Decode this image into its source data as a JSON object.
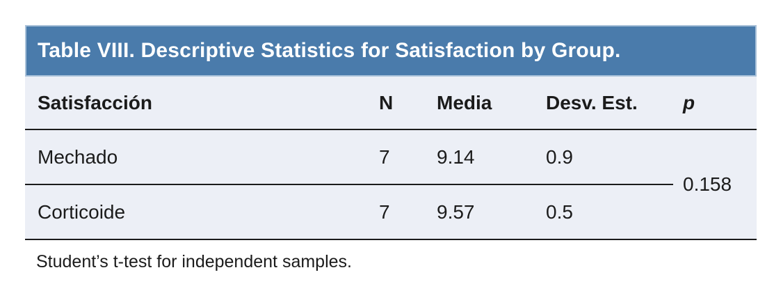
{
  "table": {
    "title": "Table VIII. Descriptive Statistics for Satisfaction by Group.",
    "columns": {
      "group": "Satisfacción",
      "n": "N",
      "mean": "Media",
      "sd": "Desv. Est.",
      "p": "p"
    },
    "rows": [
      {
        "cells": [
          "Mechado",
          "7",
          "9.14",
          "0.9"
        ]
      },
      {
        "cells": [
          "Corticoide",
          "7",
          "9.57",
          "0.5"
        ]
      }
    ],
    "p_value": "0.158",
    "footnote": "Student’s t-test for independent samples."
  },
  "colors": {
    "title_bar_bg": "#4A7BAB",
    "title_bar_border": "#A9C1D9",
    "title_text": "#FFFFFF",
    "body_bg": "#ECEFF6",
    "rule": "#1B1B1B",
    "text": "#1B1B1B"
  }
}
